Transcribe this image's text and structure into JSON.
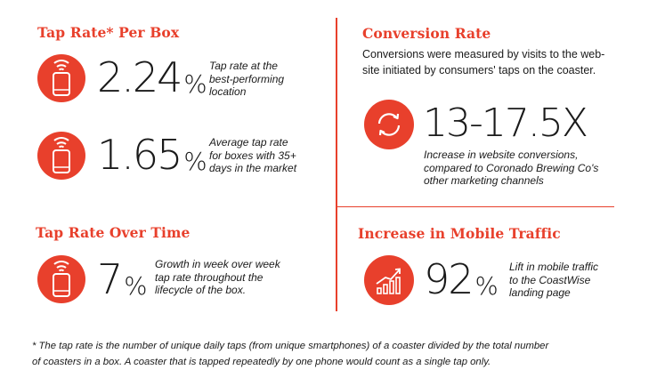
{
  "colors": {
    "accent": "#e8402c",
    "text": "#1a1a1a",
    "background": "#ffffff"
  },
  "tap_rate_per_box": {
    "heading": "Tap Rate* Per Box",
    "stats": [
      {
        "icon": "phone-tap-icon",
        "value": "2.24",
        "unit": "%",
        "description_lines": [
          "Tap rate at the",
          "best-performing",
          "location"
        ]
      },
      {
        "icon": "phone-tap-icon",
        "value": "1.65",
        "unit": "%",
        "description_lines": [
          "Average tap rate",
          "for boxes with 35+",
          "days in the market"
        ]
      }
    ]
  },
  "tap_rate_over_time": {
    "heading": "Tap Rate Over Time",
    "stat": {
      "icon": "phone-tap-icon",
      "value": "7",
      "unit": "%",
      "description_lines": [
        "Growth in week over week",
        "tap rate throughout the",
        "lifecycle of the box."
      ]
    }
  },
  "conversion_rate": {
    "heading": "Conversion Rate",
    "intro_lines": [
      "Conversions were measured by visits to the web-",
      "site initiated by consumers' taps on the coaster."
    ],
    "stat": {
      "icon": "refresh-cycle-icon",
      "value": "13-17.5X",
      "description_lines": [
        "Increase in website conversions,",
        "compared to Coronado Brewing Co's",
        "other marketing channels"
      ]
    }
  },
  "mobile_traffic": {
    "heading": "Increase in Mobile Traffic",
    "stat": {
      "icon": "growth-chart-icon",
      "value": "92",
      "unit": "%",
      "description_lines": [
        "Lift in mobile traffic",
        "to the CoastWise",
        "landing page"
      ]
    }
  },
  "footnote_lines": [
    "* The tap rate is the number of unique daily taps (from unique smartphones) of a coaster divided by the total number",
    "of coasters in a box. A coaster that is tapped repeatedly by one phone would count as a single tap only."
  ]
}
